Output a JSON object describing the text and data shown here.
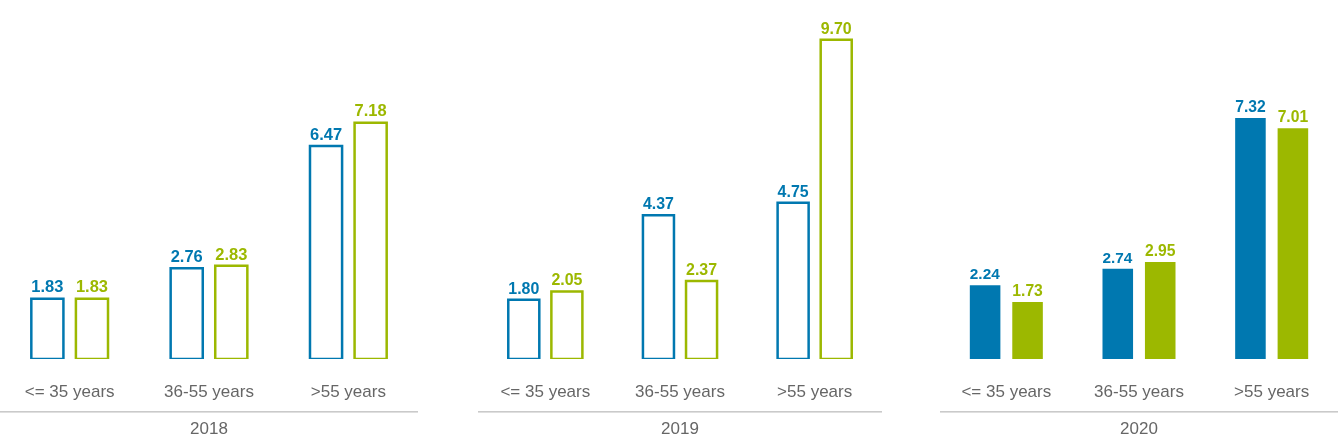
{
  "chart_data": [
    {
      "type": "bar",
      "xlabel": "2018",
      "categories": [
        "<= 35 years",
        "36-55 years",
        ">55 years"
      ],
      "tick_labels": "x",
      "grid": false,
      "series": [
        {
          "color": "#0078b0",
          "values": [
            1.83,
            2.76,
            6.47
          ],
          "value_labels": [
            "1.83",
            "2.76",
            "6.47"
          ]
        },
        {
          "color": "#9cb800",
          "values": [
            1.83,
            2.83,
            7.18
          ],
          "value_labels": [
            "1.83",
            "2.83",
            "7.18"
          ]
        }
      ]
    },
    {
      "type": "bar",
      "xlabel": "2019",
      "categories": [
        "<= 35 years",
        "36-55 years",
        ">55 years"
      ],
      "tick_labels": "x",
      "grid": false,
      "series": [
        {
          "color": "#0078b0",
          "values": [
            1.8,
            4.37,
            4.75
          ],
          "value_labels": [
            "1.80",
            "4.37",
            "4.75"
          ]
        },
        {
          "color": "#9cb800",
          "values": [
            2.05,
            2.37,
            9.7
          ],
          "value_labels": [
            "2.05",
            "2.37",
            "9.70"
          ]
        }
      ]
    },
    {
      "type": "bar",
      "xlabel": "2020",
      "categories": [
        "<= 35 years",
        "36-55 years",
        ">55 years"
      ],
      "tick_labels": "x",
      "grid": false,
      "series": [
        {
          "color": "#0078b0",
          "values": [
            2.24,
            2.74,
            7.32
          ],
          "value_labels": [
            "2.24",
            "2.74",
            "7.32"
          ]
        },
        {
          "color": "#9cb800",
          "values": [
            1.73,
            2.95,
            7.01
          ],
          "value_labels": [
            "1.73",
            "2.95",
            "7.01"
          ]
        }
      ]
    }
  ]
}
